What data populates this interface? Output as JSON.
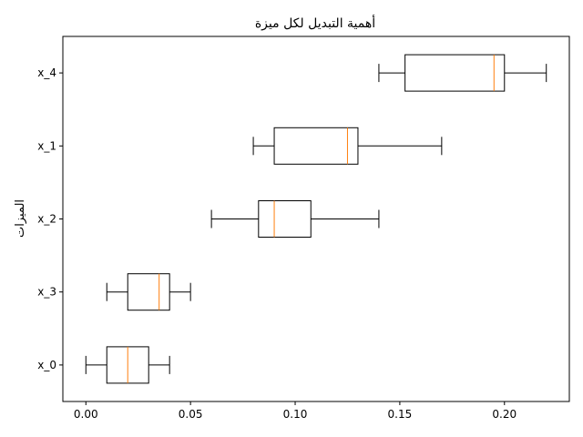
{
  "chart_data": {
    "type": "boxplot",
    "orientation": "horizontal",
    "title": "أهمية التبديل لكل ميزة",
    "xlabel": "",
    "ylabel": "الميزات",
    "xlim": [
      -0.011,
      0.231
    ],
    "xticks": [
      0.0,
      0.05,
      0.1,
      0.15,
      0.2
    ],
    "xtick_labels": [
      "0.00",
      "0.05",
      "0.10",
      "0.15",
      "0.20"
    ],
    "categories": [
      "x_0",
      "x_3",
      "x_2",
      "x_1",
      "x_4"
    ],
    "boxes": [
      {
        "label": "x_0",
        "whislo": 0.0,
        "q1": 0.01,
        "med": 0.02,
        "q3": 0.03,
        "whishi": 0.04
      },
      {
        "label": "x_3",
        "whislo": 0.01,
        "q1": 0.02,
        "med": 0.035,
        "q3": 0.04,
        "whishi": 0.05
      },
      {
        "label": "x_2",
        "whislo": 0.06,
        "q1": 0.0825,
        "med": 0.09,
        "q3": 0.1075,
        "whishi": 0.14
      },
      {
        "label": "x_1",
        "whislo": 0.08,
        "q1": 0.09,
        "med": 0.125,
        "q3": 0.13,
        "whishi": 0.17
      },
      {
        "label": "x_4",
        "whislo": 0.14,
        "q1": 0.1525,
        "med": 0.195,
        "q3": 0.2,
        "whishi": 0.22
      }
    ],
    "grid": false,
    "colors": {
      "box": "#000000",
      "median": "#ff7f0e",
      "background": "#ffffff"
    }
  }
}
